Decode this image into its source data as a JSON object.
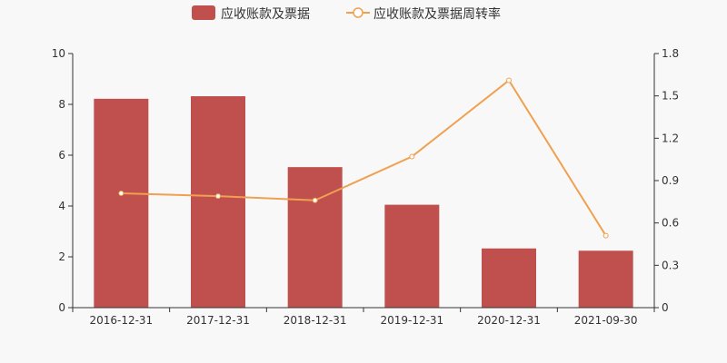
{
  "chart_data": {
    "type": "bar",
    "categories": [
      "2016-12-31",
      "2017-12-31",
      "2018-12-31",
      "2019-12-31",
      "2020-12-31",
      "2021-09-30"
    ],
    "series": [
      {
        "name": "应收账款及票据",
        "type": "bar",
        "axis": "left",
        "color": "#c0504d",
        "values": [
          8.22,
          8.32,
          5.53,
          4.05,
          2.33,
          2.24
        ]
      },
      {
        "name": "应收账款及票据周转率",
        "type": "line",
        "axis": "right",
        "color": "#f0a050",
        "values": [
          0.81,
          0.79,
          0.76,
          1.07,
          1.61,
          0.51
        ]
      }
    ],
    "y_left": {
      "min": 0,
      "max": 10,
      "ticks": [
        "0",
        "2",
        "4",
        "6",
        "8",
        "10"
      ]
    },
    "y_right": {
      "min": 0,
      "max": 1.8,
      "ticks": [
        "0",
        "0.3",
        "0.6",
        "0.9",
        "1.2",
        "1.5",
        "1.8"
      ]
    },
    "grid": false,
    "legend_position": "top-center"
  }
}
